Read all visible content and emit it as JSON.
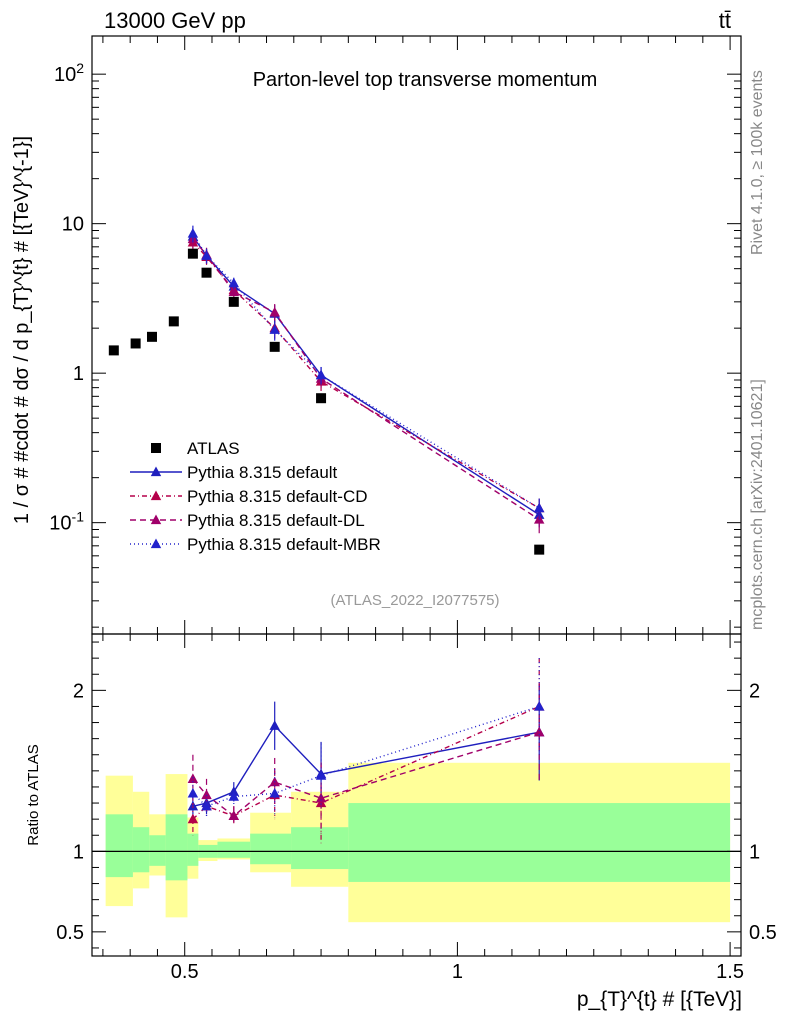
{
  "header": {
    "energy_label": "13000 GeV pp",
    "process_label": "tt̄",
    "rivet_label": "Rivet 4.1.0, ≥ 100k events",
    "mcplots_label": "mcplots.cern.ch [arXiv:2401.10621]"
  },
  "chart_data": [
    {
      "type": "line",
      "scale": "log",
      "title": "Parton-level top transverse momentum",
      "watermark": "(ATLAS_2022_I2077575)",
      "ylabel": "1 / σ # #cdot # dσ / d p_{T}^{t} # [{TeV}^{-1}]",
      "xlim": [
        0.33,
        1.52
      ],
      "ylim": [
        0.018,
        180
      ],
      "yticks": [
        {
          "v": 0.1,
          "label": "10^-1"
        },
        {
          "v": 1,
          "label": "1"
        },
        {
          "v": 10,
          "label": "10"
        },
        {
          "v": 100,
          "label": "10^2"
        }
      ],
      "data_series": {
        "name": "ATLAS",
        "color": "#000000",
        "points": [
          {
            "x": 0.37,
            "y": 1.42
          },
          {
            "x": 0.41,
            "y": 1.58
          },
          {
            "x": 0.44,
            "y": 1.75
          },
          {
            "x": 0.48,
            "y": 2.22
          },
          {
            "x": 0.515,
            "y": 6.3
          },
          {
            "x": 0.54,
            "y": 4.7
          },
          {
            "x": 0.59,
            "y": 3.0
          },
          {
            "x": 0.665,
            "y": 1.5
          },
          {
            "x": 0.75,
            "y": 0.68
          },
          {
            "x": 1.15,
            "y": 0.066
          }
        ]
      },
      "series": [
        {
          "name": "Pythia 8.315 default",
          "color": "#1f1fbe",
          "dash": "",
          "x": [
            0.515,
            0.54,
            0.59,
            0.665,
            0.75,
            1.15
          ],
          "values": [
            8.2,
            6.1,
            3.8,
            2.5,
            0.97,
            0.113
          ],
          "err": [
            1.1,
            0.7,
            0.3,
            0.35,
            0.13,
            0.02
          ]
        },
        {
          "name": "Pythia 8.315 default-CD",
          "color": "#b5004a",
          "dash": "5,3,1,3",
          "x": [
            0.515,
            0.54,
            0.59,
            0.665,
            0.75,
            1.15
          ],
          "values": [
            7.5,
            6.0,
            3.6,
            2.0,
            0.88,
            0.125
          ],
          "err": [
            1.0,
            0.7,
            0.3,
            0.3,
            0.12,
            0.02
          ]
        },
        {
          "name": "Pythia 8.315 default-DL",
          "color": "#a0006a",
          "dash": "6,4",
          "x": [
            0.515,
            0.54,
            0.59,
            0.665,
            0.75,
            1.15
          ],
          "values": [
            7.9,
            6.2,
            3.5,
            2.55,
            0.92,
            0.105
          ],
          "err": [
            1.0,
            0.7,
            0.3,
            0.35,
            0.12,
            0.02
          ]
        },
        {
          "name": "Pythia 8.315 default-MBR",
          "color": "#2222cc",
          "dash": "1,3",
          "x": [
            0.515,
            0.54,
            0.59,
            0.665,
            0.75,
            1.15
          ],
          "values": [
            8.6,
            6.1,
            4.0,
            1.95,
            0.97,
            0.125
          ],
          "err": [
            1.1,
            0.7,
            0.35,
            0.3,
            0.13,
            0.02
          ]
        }
      ]
    },
    {
      "type": "line",
      "scale": "linear",
      "ylabel": "Ratio to ATLAS",
      "xlabel": "p_{T}^{t} # [{TeV}]",
      "xlim": [
        0.33,
        1.52
      ],
      "ylim": [
        0.35,
        2.35
      ],
      "yticks": [
        {
          "v": 0.5,
          "label": "0.5"
        },
        {
          "v": 1,
          "label": "1"
        },
        {
          "v": 2,
          "label": "2"
        }
      ],
      "xticks": [
        {
          "v": 0.5,
          "label": "0.5"
        },
        {
          "v": 1,
          "label": "1"
        },
        {
          "v": 1.5,
          "label": "1.5"
        }
      ],
      "bands": [
        {
          "x0": 0.355,
          "x1": 0.405,
          "y_lo": 0.66,
          "y_hi": 1.47,
          "g_lo": 0.84,
          "g_hi": 1.23
        },
        {
          "x0": 0.405,
          "x1": 0.435,
          "y_lo": 0.77,
          "y_hi": 1.37,
          "g_lo": 0.87,
          "g_hi": 1.15
        },
        {
          "x0": 0.435,
          "x1": 0.465,
          "y_lo": 0.85,
          "y_hi": 1.23,
          "g_lo": 0.91,
          "g_hi": 1.1
        },
        {
          "x0": 0.465,
          "x1": 0.505,
          "y_lo": 0.59,
          "y_hi": 1.48,
          "g_lo": 0.82,
          "g_hi": 1.23
        },
        {
          "x0": 0.505,
          "x1": 0.525,
          "y_lo": 0.83,
          "y_hi": 1.21,
          "g_lo": 0.91,
          "g_hi": 1.11
        },
        {
          "x0": 0.525,
          "x1": 0.56,
          "y_lo": 0.94,
          "y_hi": 1.07,
          "g_lo": 0.96,
          "g_hi": 1.04
        },
        {
          "x0": 0.56,
          "x1": 0.62,
          "y_lo": 0.95,
          "y_hi": 1.08,
          "g_lo": 0.96,
          "g_hi": 1.06
        },
        {
          "x0": 0.62,
          "x1": 0.695,
          "y_lo": 0.87,
          "y_hi": 1.24,
          "g_lo": 0.92,
          "g_hi": 1.11
        },
        {
          "x0": 0.695,
          "x1": 0.8,
          "y_lo": 0.78,
          "y_hi": 1.37,
          "g_lo": 0.89,
          "g_hi": 1.15
        },
        {
          "x0": 0.8,
          "x1": 1.5,
          "y_lo": 0.56,
          "y_hi": 1.55,
          "g_lo": 0.81,
          "g_hi": 1.3
        }
      ],
      "series": [
        {
          "name": "Pythia 8.315 default",
          "color": "#1f1fbe",
          "dash": "",
          "x": [
            0.515,
            0.54,
            0.59,
            0.665,
            0.75,
            1.15
          ],
          "values": [
            1.28,
            1.3,
            1.37,
            1.78,
            1.48,
            1.74
          ],
          "err": [
            0.1,
            0.07,
            0.06,
            0.15,
            0.2,
            0.3
          ]
        },
        {
          "name": "Pythia 8.315 default-CD",
          "color": "#b5004a",
          "dash": "5,3,1,3",
          "x": [
            0.515,
            0.54,
            0.59,
            0.665,
            0.75,
            1.15
          ],
          "values": [
            1.2,
            1.28,
            1.22,
            1.35,
            1.3,
            1.9
          ],
          "err": [
            0.1,
            0.07,
            0.06,
            0.15,
            0.25,
            0.3
          ]
        },
        {
          "name": "Pythia 8.315 default-DL",
          "color": "#a0006a",
          "dash": "6,4",
          "x": [
            0.515,
            0.54,
            0.59,
            0.665,
            0.75,
            1.15
          ],
          "values": [
            1.45,
            1.35,
            1.22,
            1.43,
            1.33,
            1.74
          ],
          "err": [
            0.15,
            0.1,
            0.06,
            0.15,
            0.22,
            0.3
          ]
        },
        {
          "name": "Pythia 8.315 default-MBR",
          "color": "#2222cc",
          "dash": "1,3",
          "x": [
            0.515,
            0.54,
            0.59,
            0.665,
            0.75,
            1.15
          ],
          "values": [
            1.36,
            1.28,
            1.34,
            1.36,
            1.47,
            1.9
          ],
          "err": [
            0.1,
            0.07,
            0.06,
            0.15,
            0.2,
            0.3
          ]
        }
      ]
    }
  ]
}
